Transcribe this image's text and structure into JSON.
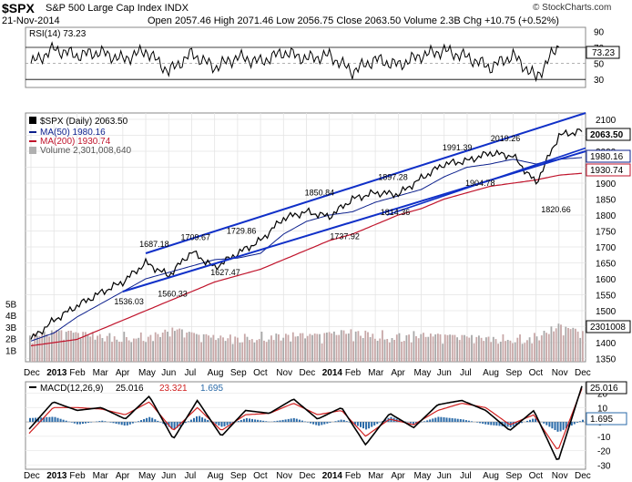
{
  "header": {
    "symbol": "$SPX",
    "name": "S&P 500 Large Cap Index  INDX",
    "date": "21-Nov-2014",
    "quote": "Open 2057.46   High 2071.46   Low 2056.75   Close 2063.50   Volume 2.3B   Chg +10.75 (+0.52%)",
    "credit": "© StockCharts.com"
  },
  "rsi_panel": {
    "legend": "RSI(14) 73.23",
    "value_badge": "73.23",
    "ticks": [
      "90",
      "70",
      "50",
      "30"
    ],
    "ylim": [
      20,
      95
    ]
  },
  "price_panel": {
    "legend_main": "$SPX (Daily) 2063.50",
    "legend_ma50": "MA(50) 1980.16",
    "legend_ma200": "MA(200) 1930.74",
    "legend_volume": "Volume 2,301,008,640",
    "badge_price": "2063.50",
    "badge_ma50": "1980.16",
    "badge_ma200": "1930.74",
    "badge_volume": "2301008",
    "ticks": [
      "2100",
      "2050",
      "2000",
      "1950",
      "1900",
      "1850",
      "1800",
      "1750",
      "1700",
      "1650",
      "1600",
      "1550",
      "1500",
      "1450",
      "1400",
      "1350"
    ],
    "volume_ticks": [
      "5B",
      "4B",
      "3B",
      "2B",
      "1B"
    ],
    "annotations": [
      "1536.03",
      "1560.33",
      "1627.47",
      "1687.18",
      "1709.67",
      "1729.86",
      "1737.92",
      "1814.36",
      "1850.84",
      "1897.28",
      "1904.78",
      "1820.66",
      "1991.39",
      "2019.26"
    ]
  },
  "macd_panel": {
    "legend_name": "MACD(12,26,9)",
    "legend_macd": "25.016",
    "legend_signal": "23.321",
    "legend_hist": "1.695",
    "badge_macd": "25.016",
    "badge_hist": "1.695",
    "ticks": [
      "20",
      "10",
      "0",
      "-10",
      "-20",
      "-30"
    ]
  },
  "x_axis": {
    "labels": [
      "Dec",
      "2013",
      "Feb",
      "Mar",
      "Apr",
      "May",
      "Jun",
      "Jul",
      "Aug",
      "Sep",
      "Oct",
      "Nov",
      "Dec",
      "2014",
      "Feb",
      "Mar",
      "Apr",
      "May",
      "Jun",
      "Jul",
      "Aug",
      "Sep",
      "Oct",
      "Nov",
      "Dec"
    ]
  },
  "colors": {
    "price_line": "#000000",
    "ma50": "#0b1f8c",
    "ma200": "#c0142c",
    "channel": "#1030c8",
    "volume_up": "#c8a8a8",
    "volume_down": "#a8a8a8",
    "macd_line": "#000000",
    "signal_line": "#d02020",
    "histogram": "#2a6aa8"
  },
  "chart_data": [
    {
      "type": "line",
      "title": "RSI(14)",
      "series": [
        {
          "name": "RSI(14)",
          "x": [
            "2012-12",
            "2013-01",
            "2013-02",
            "2013-03",
            "2013-04",
            "2013-05",
            "2013-06",
            "2013-07",
            "2013-08",
            "2013-09",
            "2013-10",
            "2013-11",
            "2013-12",
            "2014-01",
            "2014-02",
            "2014-03",
            "2014-04",
            "2014-05",
            "2014-06",
            "2014-07",
            "2014-08",
            "2014-09",
            "2014-10",
            "2014-11"
          ],
          "values": [
            50,
            68,
            60,
            64,
            55,
            66,
            40,
            62,
            45,
            58,
            52,
            64,
            56,
            60,
            40,
            55,
            48,
            60,
            66,
            58,
            45,
            60,
            32,
            73.23
          ]
        }
      ],
      "ylim": [
        20,
        95
      ]
    },
    {
      "type": "line",
      "title": "$SPX (Daily) 2063.50",
      "x": [
        "2012-12",
        "2013-01",
        "2013-02",
        "2013-03",
        "2013-04",
        "2013-05",
        "2013-06",
        "2013-07",
        "2013-08",
        "2013-09",
        "2013-10",
        "2013-11",
        "2013-12",
        "2014-01",
        "2014-02",
        "2014-03",
        "2014-04",
        "2014-05",
        "2014-06",
        "2014-07",
        "2014-08",
        "2014-09",
        "2014-10",
        "2014-11",
        "2014-11-21"
      ],
      "series": [
        {
          "name": "$SPX (Daily)",
          "values": [
            1410,
            1470,
            1515,
            1555,
            1590,
            1650,
            1610,
            1685,
            1635,
            1680,
            1720,
            1790,
            1810,
            1795,
            1850,
            1870,
            1865,
            1915,
            1960,
            1970,
            1995,
            1985,
            1900,
            2050,
            2063.5
          ]
        },
        {
          "name": "MA(50)",
          "values": [
            1405,
            1430,
            1480,
            1520,
            1560,
            1600,
            1620,
            1640,
            1660,
            1665,
            1680,
            1740,
            1780,
            1800,
            1810,
            1840,
            1860,
            1880,
            1920,
            1950,
            1960,
            1975,
            1960,
            1975,
            1980.16
          ]
        },
        {
          "name": "MA(200)",
          "values": [
            1390,
            1400,
            1410,
            1440,
            1470,
            1500,
            1530,
            1560,
            1590,
            1610,
            1630,
            1660,
            1690,
            1720,
            1740,
            1770,
            1800,
            1820,
            1850,
            1870,
            1890,
            1900,
            1910,
            1925,
            1930.74
          ]
        }
      ],
      "ylim": [
        1340,
        2120
      ]
    },
    {
      "type": "bar",
      "title": "Volume 2,301,008,640",
      "x": [
        "2012-12",
        "2013-01",
        "2013-02",
        "2013-03",
        "2013-04",
        "2013-05",
        "2013-06",
        "2013-07",
        "2013-08",
        "2013-09",
        "2013-10",
        "2013-11",
        "2013-12",
        "2014-01",
        "2014-02",
        "2014-03",
        "2014-04",
        "2014-05",
        "2014-06",
        "2014-07",
        "2014-08",
        "2014-09",
        "2014-10",
        "2014-11"
      ],
      "values": [
        2.1,
        2.4,
        2.3,
        2.2,
        2.3,
        2.2,
        2.6,
        2.1,
        2.0,
        2.2,
        2.3,
        2.2,
        2.1,
        2.4,
        2.5,
        2.3,
        2.3,
        2.1,
        2.0,
        2.0,
        2.1,
        2.2,
        2.9,
        2.3
      ],
      "ylabel": "Volume",
      "ylim": [
        0,
        5.5
      ]
    },
    {
      "type": "line",
      "title": "MACD(12,26,9)",
      "x": [
        "2012-12",
        "2013-01",
        "2013-02",
        "2013-03",
        "2013-04",
        "2013-05",
        "2013-06",
        "2013-07",
        "2013-08",
        "2013-09",
        "2013-10",
        "2013-11",
        "2013-12",
        "2014-01",
        "2014-02",
        "2014-03",
        "2014-04",
        "2014-05",
        "2014-06",
        "2014-07",
        "2014-08",
        "2014-09",
        "2014-10",
        "2014-11"
      ],
      "series": [
        {
          "name": "MACD",
          "values": [
            -5,
            14,
            8,
            10,
            2,
            18,
            -12,
            15,
            -10,
            8,
            6,
            16,
            2,
            10,
            -16,
            6,
            -4,
            12,
            15,
            8,
            -6,
            8,
            -28,
            25.016
          ]
        },
        {
          "name": "Signal",
          "values": [
            -8,
            10,
            10,
            9,
            5,
            14,
            -6,
            10,
            -6,
            5,
            6,
            13,
            5,
            8,
            -10,
            2,
            -2,
            8,
            13,
            10,
            -2,
            5,
            -20,
            23.321
          ]
        }
      ],
      "ylim": [
        -33,
        28
      ]
    }
  ]
}
